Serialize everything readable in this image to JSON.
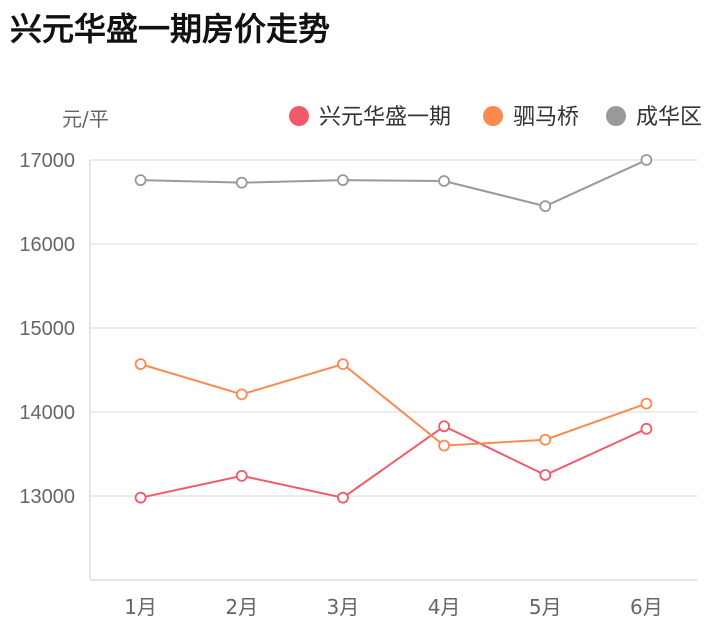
{
  "chart_data": {
    "type": "line",
    "title": "兴元华盛一期房价走势",
    "ylabel": "元/平",
    "categories": [
      "1月",
      "2月",
      "3月",
      "4月",
      "5月",
      "6月"
    ],
    "ylim": [
      12000,
      17000
    ],
    "yticks": [
      13000,
      14000,
      15000,
      16000,
      17000
    ],
    "grid": true,
    "legend_position": "top-right",
    "series": [
      {
        "name": "兴元华盛一期",
        "color": "#f25a6a",
        "values": [
          12980,
          13240,
          12980,
          13830,
          13250,
          13800
        ]
      },
      {
        "name": "驷马桥",
        "color": "#fa8a50",
        "values": [
          14570,
          14210,
          14570,
          13600,
          13670,
          14100
        ]
      },
      {
        "name": "成华区",
        "color": "#999999",
        "values": [
          16760,
          16730,
          16760,
          16750,
          16450,
          17000
        ]
      }
    ]
  }
}
